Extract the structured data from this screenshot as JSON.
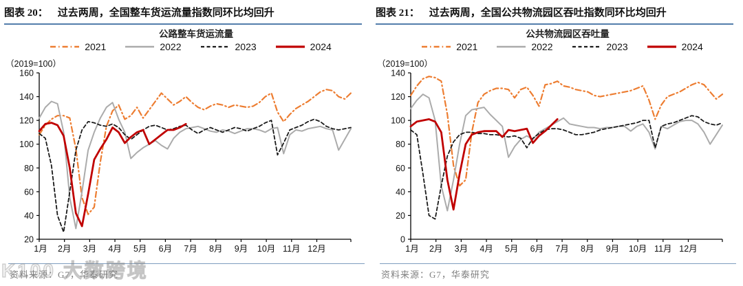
{
  "page_type": "research-report-figure-pair",
  "watermark": "K100 大数跨境",
  "colors": {
    "header_rule": "#527dab",
    "bottom_rule": "#7d9cbe",
    "axis": "#000000",
    "source_text": "#7f7f7f",
    "accent_2021": "#ED7D31",
    "accent_2022": "#ABABAB",
    "accent_2023": "#1A1A1A",
    "accent_2024": "#C00000"
  },
  "charts": [
    {
      "figure_label": "图表 20：",
      "figure_title": "过去两周，全国整车货运流量指数同环比均回升",
      "source_note": "资料来源：G7，华泰研究",
      "chart_data": {
        "type": "line",
        "title": "公路整车货运流量",
        "y_unit_label": "（2019=100）",
        "x_resolution": "weekly, 52 points per year",
        "x_tick_labels": [
          "1月",
          "2月",
          "3月",
          "4月",
          "5月",
          "6月",
          "7月",
          "8月",
          "9月",
          "10月",
          "11月",
          "12月"
        ],
        "ylim": [
          20,
          160
        ],
        "ytick_step": 20,
        "grid": false,
        "legend_position": "top",
        "series": [
          {
            "name": "2021",
            "color": "#ED7D31",
            "style": "dashdot",
            "width": 2.2,
            "values": [
              108,
              116,
              121,
              124,
              124,
              122,
              96,
              55,
              41,
              47,
              85,
              115,
              128,
              133,
              121,
              124,
              131,
              122,
              129,
              136,
              143,
              138,
              133,
              136,
              140,
              135,
              131,
              129,
              132,
              134,
              133,
              131,
              133,
              132,
              131,
              132,
              135,
              140,
              143,
              127,
              119,
              125,
              130,
              133,
              136,
              140,
              144,
              146,
              145,
              140,
              138,
              143
            ]
          },
          {
            "name": "2022",
            "color": "#ABABAB",
            "style": "solid",
            "width": 2,
            "values": [
              122,
              131,
              136,
              134,
              110,
              55,
              29,
              60,
              95,
              110,
              122,
              131,
              135,
              121,
              110,
              88,
              93,
              97,
              100,
              103,
              99,
              96,
              105,
              110,
              113,
              114,
              115,
              113,
              111,
              110,
              112,
              111,
              109,
              111,
              113,
              113,
              112,
              110,
              113,
              114,
              92,
              108,
              112,
              111,
              113,
              114,
              115,
              113,
              112,
              95,
              104,
              113
            ]
          },
          {
            "name": "2023",
            "color": "#1A1A1A",
            "style": "dashed",
            "width": 1.8,
            "values": [
              109,
              105,
              82,
              40,
              26,
              60,
              95,
              112,
              119,
              118,
              116,
              115,
              117,
              114,
              108,
              104,
              108,
              112,
              115,
              116,
              114,
              112,
              113,
              115,
              116,
              112,
              109,
              112,
              114,
              112,
              110,
              112,
              114,
              113,
              111,
              113,
              115,
              118,
              120,
              91,
              101,
              112,
              114,
              116,
              119,
              121,
              119,
              115,
              113,
              112,
              113,
              114
            ]
          },
          {
            "name": "2024",
            "color": "#C00000",
            "style": "solid",
            "width": 2.8,
            "values": [
              111,
              117,
              118,
              116,
              107,
              80,
              42,
              31,
              58,
              87,
              96,
              104,
              114,
              110,
              101,
              106,
              110,
              112,
              100,
              104,
              108,
              112,
              112,
              114,
              117
            ]
          }
        ]
      }
    },
    {
      "figure_label": "图表 21：",
      "figure_title": "过去两周，全国公共物流园区吞吐指数同环比均回升",
      "source_note": "资料来源：G7，华泰研究",
      "chart_data": {
        "type": "line",
        "title": "公共物流园区吞吐量",
        "y_unit_label": "（2019=100）",
        "x_resolution": "weekly, 52 points per year",
        "x_tick_labels": [
          "1月",
          "2月",
          "3月",
          "4月",
          "5月",
          "6月",
          "7月",
          "8月",
          "9月",
          "10月",
          "11月",
          "12月"
        ],
        "ylim": [
          0,
          140
        ],
        "ytick_step": 20,
        "grid": false,
        "legend_position": "top",
        "series": [
          {
            "name": "2021",
            "color": "#ED7D31",
            "style": "dashdot",
            "width": 2.2,
            "values": [
              121,
              129,
              135,
              137,
              136,
              133,
              105,
              62,
              45,
              50,
              90,
              115,
              122,
              125,
              127,
              127,
              126,
              119,
              126,
              128,
              121,
              112,
              130,
              131,
              133,
              129,
              128,
              126,
              125,
              124,
              121,
              120,
              121,
              122,
              123,
              124,
              125,
              127,
              129,
              117,
              101,
              113,
              120,
              122,
              124,
              127,
              130,
              132,
              130,
              124,
              118,
              122
            ]
          },
          {
            "name": "2022",
            "color": "#ABABAB",
            "style": "solid",
            "width": 2,
            "values": [
              110,
              117,
              122,
              119,
              100,
              45,
              24,
              50,
              80,
              104,
              109,
              110,
              111,
              105,
              100,
              95,
              69,
              78,
              84,
              87,
              84,
              90,
              93,
              96,
              99,
              102,
              97,
              96,
              95,
              94,
              94,
              93,
              94,
              94,
              95,
              95,
              91,
              95,
              97,
              90,
              76,
              95,
              93,
              96,
              99,
              100,
              100,
              97,
              90,
              80,
              88,
              96
            ]
          },
          {
            "name": "2023",
            "color": "#1A1A1A",
            "style": "dashed",
            "width": 1.8,
            "values": [
              92,
              88,
              55,
              20,
              17,
              45,
              70,
              82,
              88,
              90,
              90,
              89,
              89,
              88,
              88,
              87,
              86,
              87,
              85,
              77,
              85,
              89,
              92,
              93,
              93,
              92,
              90,
              88,
              88,
              89,
              90,
              92,
              93,
              94,
              95,
              96,
              97,
              98,
              100,
              100,
              77,
              95,
              97,
              98,
              100,
              102,
              104,
              103,
              99,
              97,
              96,
              98
            ]
          },
          {
            "name": "2024",
            "color": "#C00000",
            "style": "solid",
            "width": 2.8,
            "values": [
              95,
              99,
              100,
              101,
              99,
              90,
              50,
              25,
              55,
              80,
              88,
              90,
              91,
              91,
              91,
              86,
              92,
              91,
              92,
              93,
              81,
              87,
              91,
              96,
              101
            ]
          }
        ]
      }
    }
  ]
}
